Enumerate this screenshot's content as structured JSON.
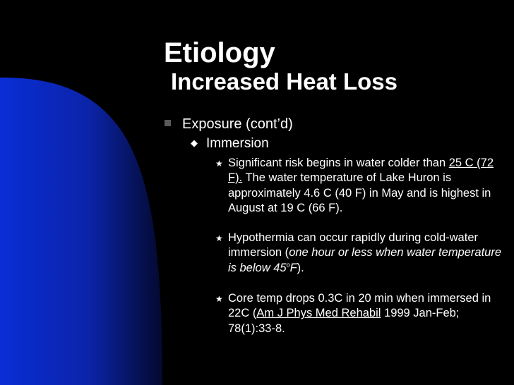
{
  "slide": {
    "title": "Etiology",
    "subtitle": "Increased Heat Loss",
    "level1": "Exposure (cont’d)",
    "level2": "Immersion",
    "bullets": [
      {
        "link": "25 C (72 F).",
        "intro": "Significant risk begins in water colder than ",
        "rest": " The water temperature of Lake Huron is approximately 4.6 C (40 F) in May and is highest in August at 19 C (66 F)."
      },
      {
        "before": "Hypothermia can occur rapidly during cold-water immersion (",
        "italic": "one hour or less when water temperature is below 45",
        "degree": "o",
        "italic_unit": "F",
        "after": ")."
      },
      {
        "before": "Core temp drops 0.3C in 20 min when immersed in 22C (",
        "link": "Am J Phys Med Rehabil",
        "after": " 1999 Jan-Feb; 78(1):33-8."
      }
    ]
  },
  "colors": {
    "background": "#000000",
    "accent_blue": "#0a2dd6",
    "text": "#ffffff"
  }
}
